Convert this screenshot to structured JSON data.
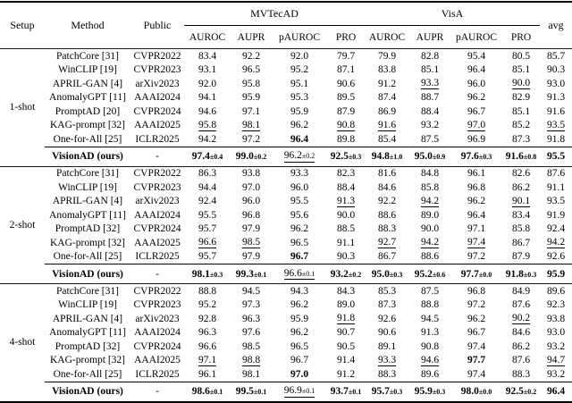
{
  "table": {
    "header": {
      "setup": "Setup",
      "method": "Method",
      "public": "Public",
      "group1": "MVTecAD",
      "group2": "VisA",
      "avg": "avg",
      "metrics": [
        "AUROC",
        "AUPR",
        "pAUROC",
        "PRO",
        "AUROC",
        "AUPR",
        "pAUROC",
        "PRO"
      ]
    },
    "blocks": [
      {
        "setup": "1-shot",
        "rows": [
          {
            "method": "PatchCore [31]",
            "public": "CVPR2022",
            "cells": [
              {
                "v": "83.4"
              },
              {
                "v": "92.2"
              },
              {
                "v": "92.0"
              },
              {
                "v": "79.7"
              },
              {
                "v": "79.9"
              },
              {
                "v": "82.8"
              },
              {
                "v": "95.4"
              },
              {
                "v": "80.5"
              },
              {
                "v": "85.7"
              }
            ]
          },
          {
            "method": "WinCLIP [19]",
            "public": "CVPR2023",
            "cells": [
              {
                "v": "93.1"
              },
              {
                "v": "96.5"
              },
              {
                "v": "95.2"
              },
              {
                "v": "87.1"
              },
              {
                "v": "83.8"
              },
              {
                "v": "85.1"
              },
              {
                "v": "96.4"
              },
              {
                "v": "85.1"
              },
              {
                "v": "90.3"
              }
            ]
          },
          {
            "method": "APRIL-GAN [4]",
            "public": "arXiv2023",
            "cells": [
              {
                "v": "92.0"
              },
              {
                "v": "95.8"
              },
              {
                "v": "95.1"
              },
              {
                "v": "90.6"
              },
              {
                "v": "91.2"
              },
              {
                "v": "93.3",
                "m": "u"
              },
              {
                "v": "96.0"
              },
              {
                "v": "90.0",
                "m": "u"
              },
              {
                "v": "93.0"
              }
            ]
          },
          {
            "method": "AnomalyGPT [11]",
            "public": "AAAI2024",
            "cells": [
              {
                "v": "94.1"
              },
              {
                "v": "95.9"
              },
              {
                "v": "95.3"
              },
              {
                "v": "89.5"
              },
              {
                "v": "87.4"
              },
              {
                "v": "88.7"
              },
              {
                "v": "96.2"
              },
              {
                "v": "82.9"
              },
              {
                "v": "91.3"
              }
            ]
          },
          {
            "method": "PromptAD [20]",
            "public": "CVPR2024",
            "cells": [
              {
                "v": "94.6"
              },
              {
                "v": "97.1"
              },
              {
                "v": "95.9"
              },
              {
                "v": "87.9"
              },
              {
                "v": "86.9"
              },
              {
                "v": "88.4"
              },
              {
                "v": "96.7"
              },
              {
                "v": "85.1"
              },
              {
                "v": "91.6"
              }
            ]
          },
          {
            "method": "KAG-prompt [32]",
            "public": "AAAI2025",
            "cells": [
              {
                "v": "95.8",
                "m": "u"
              },
              {
                "v": "98.1",
                "m": "u"
              },
              {
                "v": "96.2"
              },
              {
                "v": "90.8",
                "m": "u"
              },
              {
                "v": "91.6",
                "m": "u"
              },
              {
                "v": "93.2"
              },
              {
                "v": "97.0",
                "m": "u"
              },
              {
                "v": "85.2"
              },
              {
                "v": "93.5",
                "m": "u"
              }
            ]
          },
          {
            "method": "One-for-All [25]",
            "public": "ICLR2025",
            "cells": [
              {
                "v": "94.2"
              },
              {
                "v": "97.2"
              },
              {
                "v": "96.4",
                "m": "b"
              },
              {
                "v": "89.8"
              },
              {
                "v": "85.4"
              },
              {
                "v": "87.5"
              },
              {
                "v": "96.9"
              },
              {
                "v": "87.3"
              },
              {
                "v": "91.8"
              }
            ]
          },
          {
            "method": "VisionAD (ours)",
            "public": "-",
            "ours": true,
            "cells": [
              {
                "v": "97.4",
                "pm": "±0.4",
                "m": "b"
              },
              {
                "v": "99.0",
                "pm": "±0.2",
                "m": "b"
              },
              {
                "v": "96.2",
                "pm": "±0.2",
                "m": "u"
              },
              {
                "v": "92.5",
                "pm": "±0.3",
                "m": "b"
              },
              {
                "v": "94.8",
                "pm": "±1.0",
                "m": "b"
              },
              {
                "v": "95.0",
                "pm": "±0.9",
                "m": "b"
              },
              {
                "v": "97.6",
                "pm": "±0.3",
                "m": "b"
              },
              {
                "v": "91.6",
                "pm": "±0.8",
                "m": "b"
              },
              {
                "v": "95.5",
                "m": "b"
              }
            ]
          }
        ]
      },
      {
        "setup": "2-shot",
        "rows": [
          {
            "method": "PatchCore [31]",
            "public": "CVPR2022",
            "cells": [
              {
                "v": "86.3"
              },
              {
                "v": "93.8"
              },
              {
                "v": "93.3"
              },
              {
                "v": "82.3"
              },
              {
                "v": "81.6"
              },
              {
                "v": "84.8"
              },
              {
                "v": "96.1"
              },
              {
                "v": "82.6"
              },
              {
                "v": "87.6"
              }
            ]
          },
          {
            "method": "WinCLIP [19]",
            "public": "CVPR2023",
            "cells": [
              {
                "v": "94.4"
              },
              {
                "v": "97.0"
              },
              {
                "v": "96.0"
              },
              {
                "v": "88.4"
              },
              {
                "v": "84.6"
              },
              {
                "v": "85.8"
              },
              {
                "v": "96.8"
              },
              {
                "v": "86.2"
              },
              {
                "v": "91.1"
              }
            ]
          },
          {
            "method": "APRIL-GAN [4]",
            "public": "arXiv2023",
            "cells": [
              {
                "v": "92.4"
              },
              {
                "v": "96.0"
              },
              {
                "v": "95.5"
              },
              {
                "v": "91.3",
                "m": "u"
              },
              {
                "v": "92.2"
              },
              {
                "v": "94.2",
                "m": "u"
              },
              {
                "v": "96.2"
              },
              {
                "v": "90.1",
                "m": "u"
              },
              {
                "v": "93.5"
              }
            ]
          },
          {
            "method": "AnomalyGPT [11]",
            "public": "AAAI2024",
            "cells": [
              {
                "v": "95.5"
              },
              {
                "v": "96.8"
              },
              {
                "v": "95.6"
              },
              {
                "v": "90.0"
              },
              {
                "v": "88.6"
              },
              {
                "v": "89.0"
              },
              {
                "v": "96.4"
              },
              {
                "v": "83.4"
              },
              {
                "v": "91.9"
              }
            ]
          },
          {
            "method": "PromptAD [32]",
            "public": "CVPR2024",
            "cells": [
              {
                "v": "95.7"
              },
              {
                "v": "97.9"
              },
              {
                "v": "96.2"
              },
              {
                "v": "88.5"
              },
              {
                "v": "88.3"
              },
              {
                "v": "90.0"
              },
              {
                "v": "97.1"
              },
              {
                "v": "85.8"
              },
              {
                "v": "92.4"
              }
            ]
          },
          {
            "method": "KAG-prompt [32]",
            "public": "AAAI2025",
            "cells": [
              {
                "v": "96.6",
                "m": "u"
              },
              {
                "v": "98.5",
                "m": "u"
              },
              {
                "v": "96.5"
              },
              {
                "v": "91.1"
              },
              {
                "v": "92.7",
                "m": "u"
              },
              {
                "v": "94.2",
                "m": "u"
              },
              {
                "v": "97.4",
                "m": "u"
              },
              {
                "v": "86.7"
              },
              {
                "v": "94.2",
                "m": "u"
              }
            ]
          },
          {
            "method": "One-for-All [25]",
            "public": "ICLR2025",
            "cells": [
              {
                "v": "95.7"
              },
              {
                "v": "97.9"
              },
              {
                "v": "96.7",
                "m": "b"
              },
              {
                "v": "90.3"
              },
              {
                "v": "86.7"
              },
              {
                "v": "88.6"
              },
              {
                "v": "97.2"
              },
              {
                "v": "87.9"
              },
              {
                "v": "92.6"
              }
            ]
          },
          {
            "method": "VisionAD (ours)",
            "public": "-",
            "ours": true,
            "cells": [
              {
                "v": "98.1",
                "pm": "±0.3",
                "m": "b"
              },
              {
                "v": "99.3",
                "pm": "±0.1",
                "m": "b"
              },
              {
                "v": "96.6",
                "pm": "±0.1",
                "m": "u"
              },
              {
                "v": "93.2",
                "pm": "±0.2",
                "m": "b"
              },
              {
                "v": "95.0",
                "pm": "±0.3",
                "m": "b"
              },
              {
                "v": "95.2",
                "pm": "±0.6",
                "m": "b"
              },
              {
                "v": "97.7",
                "pm": "±0.0",
                "m": "b"
              },
              {
                "v": "91.8",
                "pm": "±0.3",
                "m": "b"
              },
              {
                "v": "95.9",
                "m": "b"
              }
            ]
          }
        ]
      },
      {
        "setup": "4-shot",
        "rows": [
          {
            "method": "PatchCore [31]",
            "public": "CVPR2022",
            "cells": [
              {
                "v": "88.8"
              },
              {
                "v": "94.5"
              },
              {
                "v": "94.3"
              },
              {
                "v": "84.3"
              },
              {
                "v": "85.3"
              },
              {
                "v": "87.5"
              },
              {
                "v": "96.8"
              },
              {
                "v": "84.9"
              },
              {
                "v": "89.6"
              }
            ]
          },
          {
            "method": "WinCLIP [19]",
            "public": "CVPR2023",
            "cells": [
              {
                "v": "95.2"
              },
              {
                "v": "97.3"
              },
              {
                "v": "96.2"
              },
              {
                "v": "89.0"
              },
              {
                "v": "87.3"
              },
              {
                "v": "88.8"
              },
              {
                "v": "97.2"
              },
              {
                "v": "87.6"
              },
              {
                "v": "92.3"
              }
            ]
          },
          {
            "method": "APRIL-GAN [4]",
            "public": "arXiv2023",
            "cells": [
              {
                "v": "92.8"
              },
              {
                "v": "96.3"
              },
              {
                "v": "95.9"
              },
              {
                "v": "91.8",
                "m": "u"
              },
              {
                "v": "92.6"
              },
              {
                "v": "94.5"
              },
              {
                "v": "96.2"
              },
              {
                "v": "90.2",
                "m": "u"
              },
              {
                "v": "93.8"
              }
            ]
          },
          {
            "method": "AnomalyGPT [11]",
            "public": "AAAI2024",
            "cells": [
              {
                "v": "96.3"
              },
              {
                "v": "97.6"
              },
              {
                "v": "96.2"
              },
              {
                "v": "90.7"
              },
              {
                "v": "90.6"
              },
              {
                "v": "91.3"
              },
              {
                "v": "96.7"
              },
              {
                "v": "84.6"
              },
              {
                "v": "93.0"
              }
            ]
          },
          {
            "method": "PromptAD [32]",
            "public": "CVPR2024",
            "cells": [
              {
                "v": "96.6"
              },
              {
                "v": "98.5"
              },
              {
                "v": "96.5"
              },
              {
                "v": "90.5"
              },
              {
                "v": "89.1"
              },
              {
                "v": "90.8"
              },
              {
                "v": "97.4"
              },
              {
                "v": "86.2"
              },
              {
                "v": "93.2"
              }
            ]
          },
          {
            "method": "KAG-prompt [32]",
            "public": "AAAI2025",
            "cells": [
              {
                "v": "97.1",
                "m": "u"
              },
              {
                "v": "98.8",
                "m": "u"
              },
              {
                "v": "96.7"
              },
              {
                "v": "91.4"
              },
              {
                "v": "93.3",
                "m": "u"
              },
              {
                "v": "94.6",
                "m": "u"
              },
              {
                "v": "97.7",
                "m": "b"
              },
              {
                "v": "87.6"
              },
              {
                "v": "94.7",
                "m": "u"
              }
            ]
          },
          {
            "method": "One-for-All [25]",
            "public": "ICLR2025",
            "cells": [
              {
                "v": "96.1"
              },
              {
                "v": "98.1"
              },
              {
                "v": "97.0",
                "m": "b"
              },
              {
                "v": "91.2"
              },
              {
                "v": "88.3"
              },
              {
                "v": "89.6"
              },
              {
                "v": "97.4"
              },
              {
                "v": "88.3"
              },
              {
                "v": "93.2"
              }
            ]
          },
          {
            "method": "VisionAD (ours)",
            "public": "-",
            "ours": true,
            "cells": [
              {
                "v": "98.6",
                "pm": "±0.1",
                "m": "b"
              },
              {
                "v": "99.5",
                "pm": "±0.1",
                "m": "b"
              },
              {
                "v": "96.9",
                "pm": "±0.1",
                "m": "u"
              },
              {
                "v": "93.7",
                "pm": "±0.1",
                "m": "b"
              },
              {
                "v": "95.7",
                "pm": "±0.3",
                "m": "b"
              },
              {
                "v": "95.9",
                "pm": "±0.3",
                "m": "b"
              },
              {
                "v": "98.0",
                "pm": "±0.0",
                "m": "b"
              },
              {
                "v": "92.5",
                "pm": "±0.2",
                "m": "b"
              },
              {
                "v": "96.4",
                "m": "b"
              }
            ]
          }
        ]
      }
    ]
  }
}
